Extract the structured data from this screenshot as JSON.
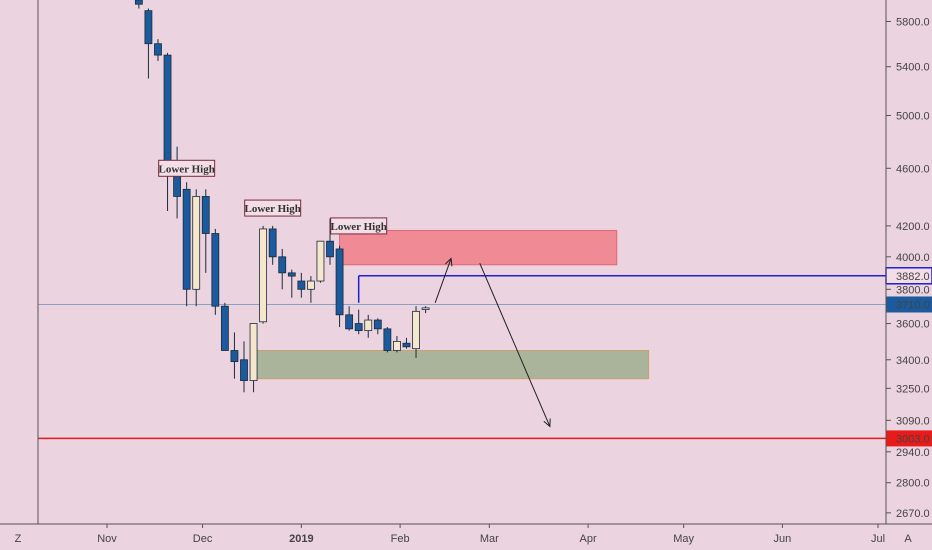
{
  "colors": {
    "background": "#ebd3df",
    "bull_body": "#f5e6cc",
    "bear_body": "#1b5a9c",
    "supply_zone": "#f08a94",
    "demand_zone": "#a9b49a",
    "resistance_line": "#1f1fd6",
    "support_line": "#e81a1a",
    "last_price_label": "#1b5a9c"
  },
  "chart_data": {
    "type": "candlestick",
    "timeframe_hint": "daily",
    "x_ticks": [
      {
        "label": "Nov",
        "date": "2018-11-01"
      },
      {
        "label": "Dec",
        "date": "2018-12-01"
      },
      {
        "label": "2019",
        "date": "2019-01-01",
        "bold": true
      },
      {
        "label": "Feb",
        "date": "2019-02-01"
      },
      {
        "label": "Mar",
        "date": "2019-03-01"
      },
      {
        "label": "Apr",
        "date": "2019-04-01"
      },
      {
        "label": "May",
        "date": "2019-05-01"
      },
      {
        "label": "Jun",
        "date": "2019-06-01"
      },
      {
        "label": "Jul",
        "date": "2019-07-01"
      }
    ],
    "y_ticks": [
      "5800.0",
      "5400.0",
      "5000.0",
      "4600.0",
      "4200.0",
      "4000.0",
      "3800.0",
      "3600.0",
      "3400.0",
      "3250.0",
      "3090.0",
      "2940.0",
      "2800.0",
      "2670.0"
    ],
    "y_scale": "log",
    "ylim": [
      2640,
      6000
    ],
    "candles": [
      {
        "d": "2018-11-11",
        "o": 6000,
        "h": 6050,
        "l": 5920,
        "c": 5960
      },
      {
        "d": "2018-11-14",
        "o": 5900,
        "h": 5920,
        "l": 5300,
        "c": 5600
      },
      {
        "d": "2018-11-17",
        "o": 5600,
        "h": 5640,
        "l": 5450,
        "c": 5500
      },
      {
        "d": "2018-11-20",
        "o": 5500,
        "h": 5520,
        "l": 4300,
        "c": 4650
      },
      {
        "d": "2018-11-23",
        "o": 4650,
        "h": 4760,
        "l": 4250,
        "c": 4400
      },
      {
        "d": "2018-11-26",
        "o": 4450,
        "h": 4500,
        "l": 3700,
        "c": 3800
      },
      {
        "d": "2018-11-29",
        "o": 3800,
        "h": 4450,
        "l": 3700,
        "c": 4400
      },
      {
        "d": "2018-12-02",
        "o": 4400,
        "h": 4450,
        "l": 3900,
        "c": 4150
      },
      {
        "d": "2018-12-05",
        "o": 4150,
        "h": 4180,
        "l": 3650,
        "c": 3700
      },
      {
        "d": "2018-12-08",
        "o": 3700,
        "h": 3720,
        "l": 3450,
        "c": 3450
      },
      {
        "d": "2018-12-11",
        "o": 3450,
        "h": 3550,
        "l": 3300,
        "c": 3390
      },
      {
        "d": "2018-12-14",
        "o": 3400,
        "h": 3500,
        "l": 3230,
        "c": 3290
      },
      {
        "d": "2018-12-17",
        "o": 3290,
        "h": 3600,
        "l": 3230,
        "c": 3600
      },
      {
        "d": "2018-12-20",
        "o": 3610,
        "h": 4200,
        "l": 3600,
        "c": 4180
      },
      {
        "d": "2018-12-23",
        "o": 4180,
        "h": 4200,
        "l": 3950,
        "c": 4000
      },
      {
        "d": "2018-12-26",
        "o": 4000,
        "h": 4050,
        "l": 3800,
        "c": 3900
      },
      {
        "d": "2018-12-29",
        "o": 3900,
        "h": 3920,
        "l": 3750,
        "c": 3880
      },
      {
        "d": "2019-01-01",
        "o": 3850,
        "h": 3900,
        "l": 3750,
        "c": 3800
      },
      {
        "d": "2019-01-04",
        "o": 3800,
        "h": 3880,
        "l": 3720,
        "c": 3850
      },
      {
        "d": "2019-01-07",
        "o": 3850,
        "h": 4100,
        "l": 3840,
        "c": 4100
      },
      {
        "d": "2019-01-10",
        "o": 4100,
        "h": 4250,
        "l": 3950,
        "c": 4000
      },
      {
        "d": "2019-01-13",
        "o": 4050,
        "h": 4070,
        "l": 3580,
        "c": 3650
      },
      {
        "d": "2019-01-16",
        "o": 3650,
        "h": 3700,
        "l": 3560,
        "c": 3570
      },
      {
        "d": "2019-01-19",
        "o": 3600,
        "h": 3680,
        "l": 3540,
        "c": 3560
      },
      {
        "d": "2019-01-22",
        "o": 3560,
        "h": 3650,
        "l": 3520,
        "c": 3620
      },
      {
        "d": "2019-01-25",
        "o": 3620,
        "h": 3630,
        "l": 3540,
        "c": 3570
      },
      {
        "d": "2019-01-28",
        "o": 3570,
        "h": 3580,
        "l": 3440,
        "c": 3450
      },
      {
        "d": "2019-01-31",
        "o": 3450,
        "h": 3530,
        "l": 3440,
        "c": 3500
      },
      {
        "d": "2019-02-03",
        "o": 3490,
        "h": 3520,
        "l": 3460,
        "c": 3470
      },
      {
        "d": "2019-02-06",
        "o": 3460,
        "h": 3700,
        "l": 3410,
        "c": 3670
      },
      {
        "d": "2019-02-09",
        "o": 3680,
        "h": 3700,
        "l": 3660,
        "c": 3690
      }
    ],
    "zones": [
      {
        "name": "supply",
        "from": "2019-01-13",
        "to": "2019-04-10",
        "top": 4170,
        "bottom": 3950
      },
      {
        "name": "demand",
        "from": "2018-12-17",
        "to": "2019-04-20",
        "top": 3450,
        "bottom": 3300
      }
    ],
    "hlines": [
      {
        "name": "resistance",
        "value": 3882.0,
        "label": "3882.0",
        "from": "2019-01-19"
      },
      {
        "name": "support",
        "value": 3003.0,
        "label": "3003.0"
      },
      {
        "name": "last-price",
        "value": 3710.0,
        "label": "3710.0"
      }
    ],
    "annotations": [
      {
        "text": "Lower High",
        "date": "2018-11-26",
        "value": 4600
      },
      {
        "text": "Lower High",
        "date": "2018-12-23",
        "value": 4320
      },
      {
        "text": "Lower High",
        "date": "2019-01-19",
        "value": 4200
      }
    ],
    "arrows": [
      {
        "from": {
          "d": "2019-02-12",
          "v": 3720
        },
        "to": {
          "d": "2019-02-17",
          "v": 3990
        }
      },
      {
        "from": {
          "d": "2019-02-26",
          "v": 3960
        },
        "to": {
          "d": "2019-03-20",
          "v": 3060
        }
      }
    ],
    "footer": {
      "left": "Z",
      "right": "A"
    },
    "grid": false
  }
}
